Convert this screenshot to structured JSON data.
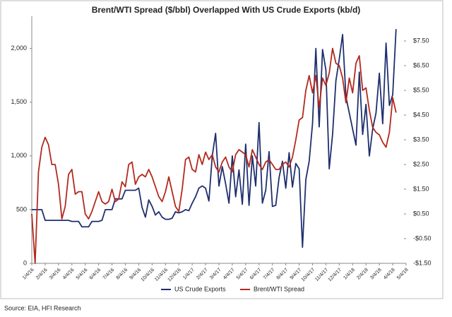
{
  "chart_data": {
    "type": "line",
    "title": "Brent/WTI Spread ($/bbl) Overlapped With US Crude Exports (kb/d)",
    "source": "Source: EIA, HFI Research",
    "categories": [
      "1/4/16",
      null,
      null,
      null,
      "2/4/16",
      null,
      null,
      null,
      "3/4/16",
      null,
      null,
      null,
      "4/4/16",
      null,
      null,
      null,
      "5/4/16",
      null,
      null,
      null,
      "6/4/16",
      null,
      null,
      null,
      "7/4/16",
      null,
      null,
      null,
      "8/4/16",
      null,
      null,
      null,
      "9/4/16",
      null,
      null,
      null,
      "10/4/16",
      null,
      null,
      null,
      "11/4/16",
      null,
      null,
      null,
      "12/4/16",
      null,
      null,
      null,
      "1/4/17",
      null,
      null,
      null,
      "2/4/17",
      null,
      null,
      null,
      "3/4/17",
      null,
      null,
      null,
      "4/4/17",
      null,
      null,
      null,
      "5/4/17",
      null,
      null,
      null,
      "6/4/17",
      null,
      null,
      null,
      "7/4/17",
      null,
      null,
      null,
      "8/4/17",
      null,
      null,
      null,
      "9/4/17",
      null,
      null,
      null,
      "10/4/17",
      null,
      null,
      null,
      "11/4/17",
      null,
      null,
      null,
      "12/4/17",
      null,
      null,
      null,
      "1/4/18",
      null,
      null,
      null,
      "2/4/18",
      null,
      null,
      null,
      "3/4/18",
      null,
      null,
      null,
      "4/4/18",
      null,
      null,
      null,
      "5/4/18"
    ],
    "series": [
      {
        "name": "US Crude Exports",
        "color": "#1f2f6e",
        "axis": "y",
        "values": [
          500,
          500,
          500,
          500,
          400,
          400,
          400,
          400,
          400,
          400,
          400,
          400,
          390,
          390,
          390,
          340,
          340,
          340,
          390,
          390,
          390,
          400,
          500,
          500,
          500,
          600,
          600,
          600,
          680,
          680,
          680,
          680,
          700,
          520,
          430,
          590,
          530,
          450,
          480,
          430,
          410,
          410,
          420,
          480,
          470,
          480,
          500,
          490,
          560,
          620,
          700,
          720,
          700,
          580,
          1000,
          1210,
          720,
          900,
          740,
          560,
          1000,
          620,
          870,
          550,
          1110,
          540,
          1000,
          720,
          1310,
          560,
          680,
          1040,
          530,
          540,
          800,
          950,
          700,
          1030,
          710,
          930,
          880,
          150,
          780,
          950,
          1300,
          2000,
          1270,
          1990,
          1800,
          880,
          1200,
          1700,
          1900,
          2130,
          1550,
          1400,
          1250,
          1100,
          1780,
          1200,
          1480,
          1000,
          1250,
          1400,
          1770,
          1300,
          2050,
          1470,
          1570,
          2180,
          null,
          null,
          null
        ]
      },
      {
        "name": "Brent/WTI Spread",
        "color": "#b22a1e",
        "axis": "y2",
        "values": [
          0.5,
          -1.5,
          2.2,
          3.2,
          3.6,
          3.3,
          2.5,
          2.5,
          1.7,
          0.3,
          0.8,
          2.1,
          2.3,
          1.3,
          1.4,
          1.4,
          0.5,
          0.3,
          0.6,
          1.0,
          1.4,
          1.0,
          0.9,
          1.0,
          1.5,
          1.0,
          1.1,
          1.8,
          1.6,
          2.5,
          2.6,
          1.7,
          2.0,
          2.1,
          2.0,
          2.3,
          2.0,
          1.6,
          1.2,
          1.0,
          1.4,
          2.0,
          1.4,
          0.8,
          0.6,
          1.5,
          2.7,
          2.8,
          2.3,
          2.2,
          2.9,
          2.5,
          3.0,
          2.7,
          2.9,
          2.4,
          2.2,
          2.6,
          2.8,
          2.4,
          2.2,
          2.9,
          3.1,
          3.0,
          2.9,
          2.4,
          3.1,
          2.8,
          2.5,
          2.3,
          2.6,
          2.7,
          2.5,
          2.3,
          2.3,
          2.5,
          2.6,
          2.4,
          2.8,
          3.5,
          4.3,
          4.4,
          5.5,
          6.1,
          5.4,
          6.1,
          4.8,
          6.0,
          5.7,
          6.2,
          7.2,
          6.6,
          6.5,
          6.0,
          5.0,
          6.0,
          5.4,
          6.6,
          6.9,
          5.5,
          5.6,
          4.7,
          4.0,
          3.8,
          3.7,
          3.4,
          3.2,
          3.8,
          5.2,
          4.6,
          null,
          null,
          null
        ]
      }
    ],
    "ylim": [
      0,
      2300
    ],
    "yticks": [
      0,
      500,
      {
        "value": 1000,
        "label": "1,000"
      },
      {
        "value": 1500,
        "label": "1,500"
      },
      {
        "value": 2000,
        "label": "2,000"
      }
    ],
    "y2lim": [
      -1.5,
      8.5
    ],
    "y2ticks": [
      {
        "value": -1.5,
        "label": "-$1.50"
      },
      {
        "value": -0.5,
        "label": "-$0.50"
      },
      {
        "value": 0.5,
        "label": "$0.50"
      },
      {
        "value": 1.5,
        "label": "$1.50"
      },
      {
        "value": 2.5,
        "label": "$2.50"
      },
      {
        "value": 3.5,
        "label": "$3.50"
      },
      {
        "value": 4.5,
        "label": "$4.50"
      },
      {
        "value": 5.5,
        "label": "$5.50"
      },
      {
        "value": 6.5,
        "label": "$6.50"
      },
      {
        "value": 7.5,
        "label": "$7.50"
      }
    ],
    "legend": "bottom"
  }
}
